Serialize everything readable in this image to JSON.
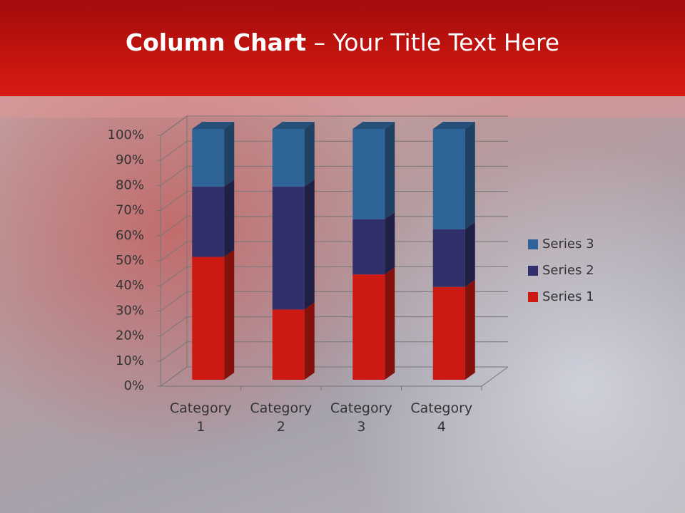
{
  "slide": {
    "title_bold": "Column Chart",
    "title_text": "– Your Title Text Here"
  },
  "chart_data": {
    "type": "stacked_bar_3d_percent",
    "categories": [
      "Category 1",
      "Category 2",
      "Category 3",
      "Category 4"
    ],
    "series": [
      {
        "name": "Series 1",
        "color": "#cc1a12",
        "values": [
          49,
          28,
          42,
          37
        ]
      },
      {
        "name": "Series 2",
        "color": "#31306a",
        "values": [
          28,
          49,
          22,
          23
        ]
      },
      {
        "name": "Series 3",
        "color": "#2f6499",
        "values": [
          23,
          23,
          36,
          40
        ]
      }
    ],
    "ylim": [
      0,
      100
    ],
    "yticks": [
      {
        "value": 0,
        "label": "0%"
      },
      {
        "value": 10,
        "label": "10%"
      },
      {
        "value": 20,
        "label": "20%"
      },
      {
        "value": 30,
        "label": "30%"
      },
      {
        "value": 40,
        "label": "40%"
      },
      {
        "value": 50,
        "label": "50%"
      },
      {
        "value": 60,
        "label": "60%"
      },
      {
        "value": 70,
        "label": "70%"
      },
      {
        "value": 80,
        "label": "80%"
      },
      {
        "value": 90,
        "label": "90%"
      },
      {
        "value": 100,
        "label": "100%"
      }
    ],
    "grid": true,
    "legend": "right"
  }
}
